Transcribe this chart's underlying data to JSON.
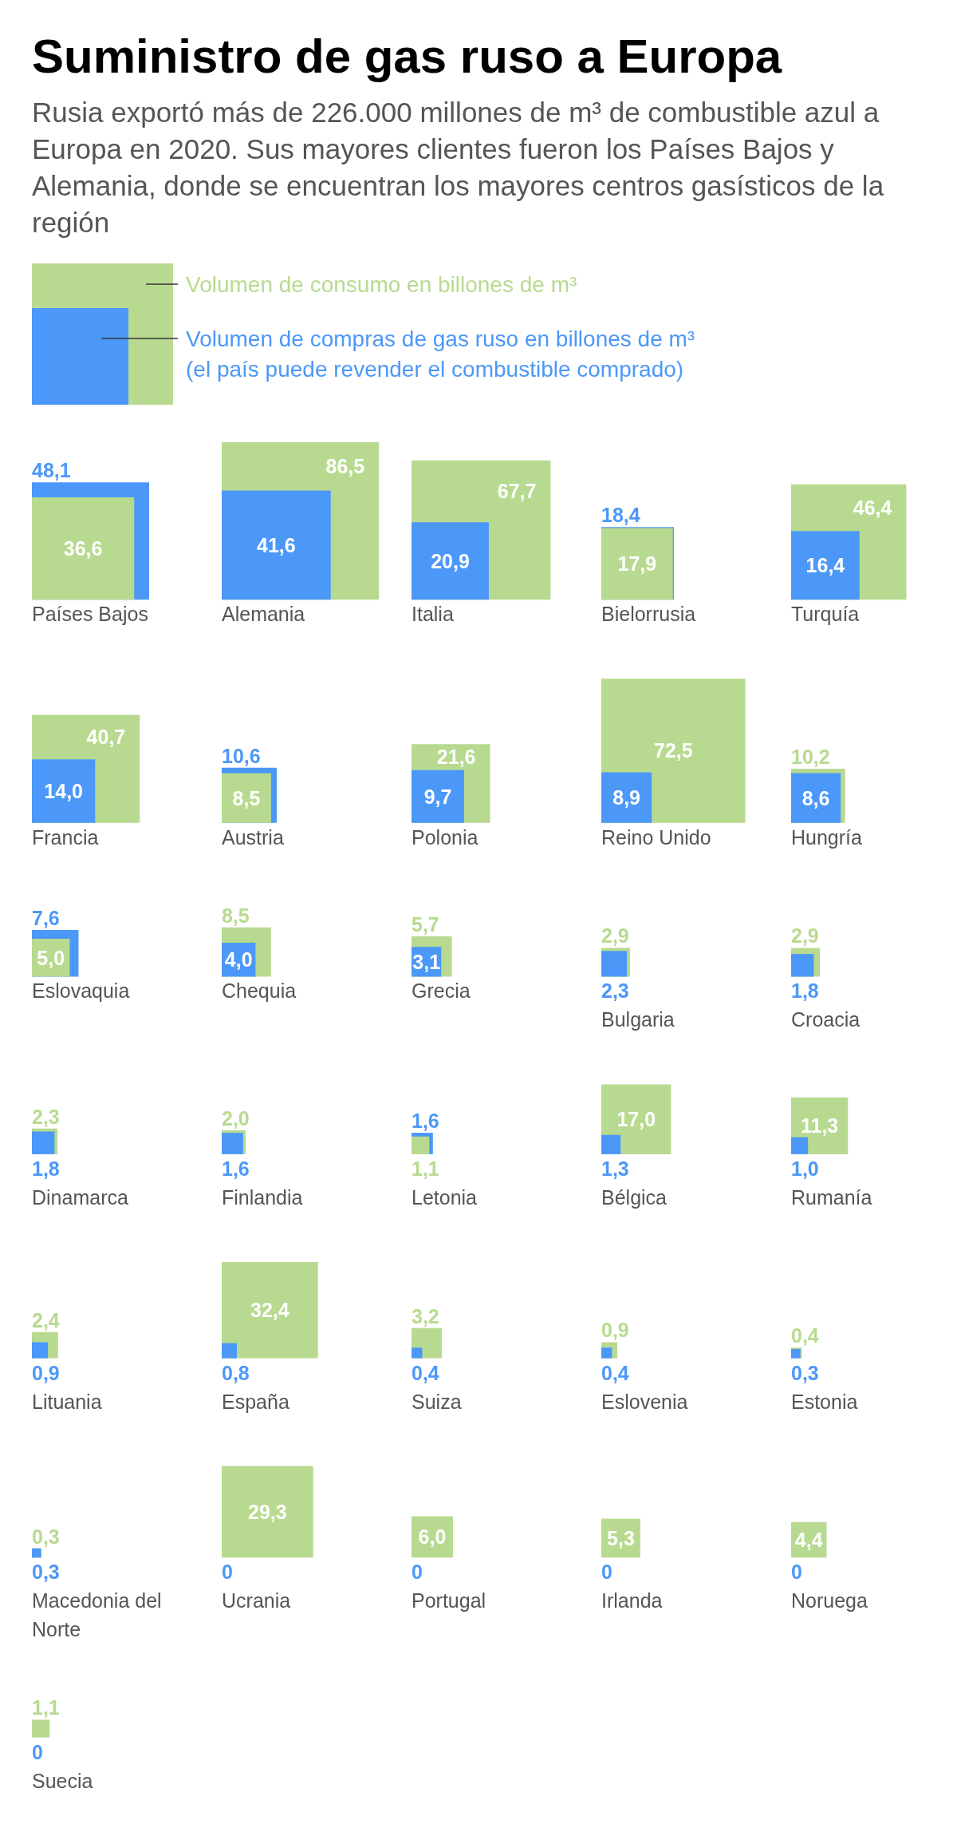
{
  "chart_data": {
    "type": "other",
    "title": "Suministro de gas ruso a Europa",
    "subtitle": "Rusia exportó más de 226.000 millones de m³ de combustible azul a Europa en 2020. Sus mayores clientes fueron los Países Bajos y Alemania, donde se encuentran los mayores centros gasísticos de la región",
    "categories": [
      "Países Bajos",
      "Alemania",
      "Italia",
      "Bielorrusia",
      "Turquía",
      "Francia",
      "Austria",
      "Polonia",
      "Reino Unido",
      "Hungría",
      "Eslovaquia",
      "Chequia",
      "Grecia",
      "Bulgaria",
      "Croacia",
      "Dinamarca",
      "Finlandia",
      "Letonia",
      "Bélgica",
      "Rumanía",
      "Lituania",
      "España",
      "Suiza",
      "Eslovenia",
      "Estonia",
      "Macedonia del Norte",
      "Ucrania",
      "Portugal",
      "Irlanda",
      "Noruega",
      "Suecia"
    ],
    "series": [
      {
        "name": "Volumen de consumo en billones de m³",
        "color": "#b8da90",
        "values": [
          36.6,
          86.5,
          67.7,
          17.9,
          46.4,
          40.7,
          8.5,
          21.6,
          72.5,
          10.2,
          5.0,
          8.5,
          5.7,
          2.9,
          2.9,
          2.3,
          2.0,
          1.1,
          17.0,
          11.3,
          2.4,
          32.4,
          3.2,
          0.9,
          0.4,
          0.3,
          29.3,
          6.0,
          5.3,
          4.4,
          1.1
        ],
        "value_labels": [
          "36,6",
          "86,5",
          "67,7",
          "17,9",
          "46,4",
          "40,7",
          "8,5",
          "21,6",
          "72,5",
          "10,2",
          "5,0",
          "8,5",
          "5,7",
          "2,9",
          "2,9",
          "2,3",
          "2,0",
          "1,1",
          "17,0",
          "11,3",
          "2,4",
          "32,4",
          "3,2",
          "0,9",
          "0,4",
          "0,3",
          "29,3",
          "6,0",
          "5,3",
          "4,4",
          "1,1"
        ]
      },
      {
        "name": "Volumen de compras de gas ruso en billones de m³ (el país puede revender el combustible comprado)",
        "color": "#4c98f8",
        "values": [
          48.1,
          41.6,
          20.9,
          18.4,
          16.4,
          14.0,
          10.6,
          9.7,
          8.9,
          8.6,
          7.6,
          4.0,
          3.1,
          2.3,
          1.8,
          1.8,
          1.6,
          1.6,
          1.3,
          1.0,
          0.9,
          0.8,
          0.4,
          0.4,
          0.3,
          0.3,
          0,
          0,
          0,
          0,
          0
        ],
        "value_labels": [
          "48,1",
          "41,6",
          "20,9",
          "18,4",
          "16,4",
          "14,0",
          "10,6",
          "9,7",
          "8,9",
          "8,6",
          "7,6",
          "4,0",
          "3,1",
          "2,3",
          "1,8",
          "1,8",
          "1,6",
          "1,6",
          "1,3",
          "1,0",
          "0,9",
          "0,8",
          "0,4",
          "0,4",
          "0,3",
          "0,3",
          "0",
          "0",
          "0",
          "0",
          "0"
        ]
      }
    ],
    "legend": "top left"
  }
}
